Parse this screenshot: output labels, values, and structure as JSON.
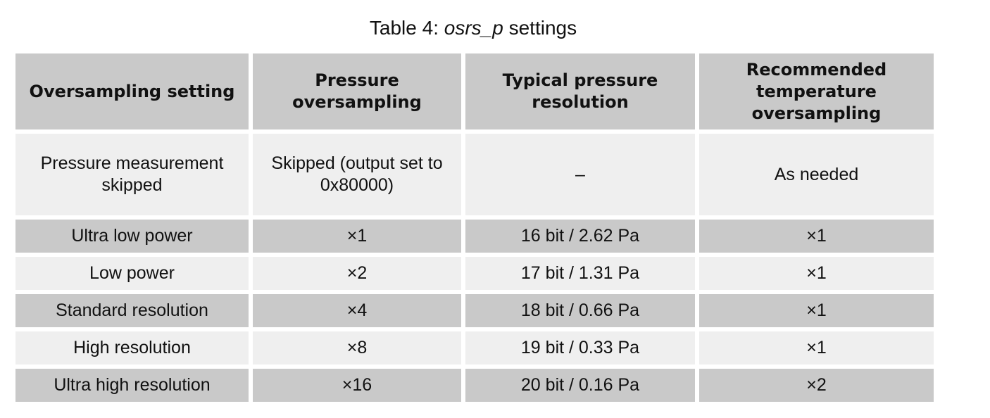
{
  "caption": {
    "prefix": "Table 4: ",
    "name": "osrs_p",
    "suffix": " settings"
  },
  "headers": [
    "Oversampling setting",
    "Pressure oversampling",
    "Typical pressure resolution",
    "Recommended temperature oversampling"
  ],
  "rows": [
    [
      "Pressure measurement skipped",
      "Skipped (output set to 0x80000)",
      "–",
      "As needed"
    ],
    [
      "Ultra low power",
      "×1",
      "16 bit / 2.62 Pa",
      "×1"
    ],
    [
      "Low power",
      "×2",
      "17 bit / 1.31 Pa",
      "×1"
    ],
    [
      "Standard resolution",
      "×4",
      "18 bit / 0.66 Pa",
      "×1"
    ],
    [
      "High resolution",
      "×8",
      "19 bit / 0.33 Pa",
      "×1"
    ],
    [
      "Ultra high resolution",
      "×16",
      "20 bit / 0.16 Pa",
      "×2"
    ]
  ],
  "colors": {
    "header_bg": "#c9c9c9",
    "row_dark": "#c9c9c9",
    "row_light": "#efefef"
  }
}
